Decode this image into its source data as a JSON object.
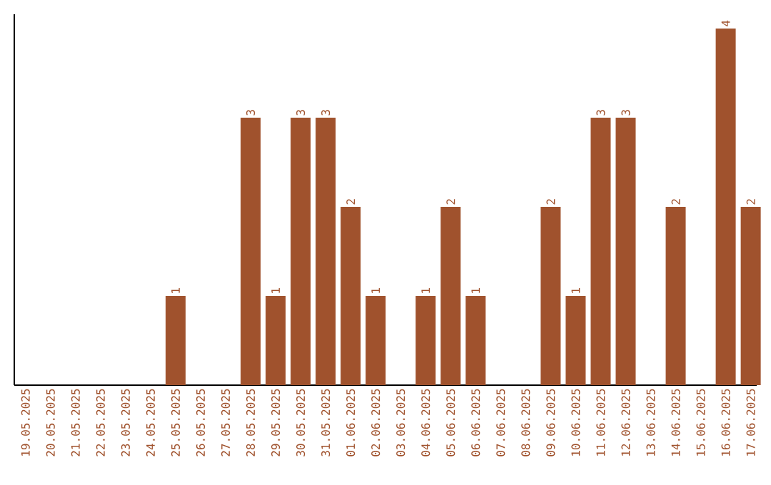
{
  "chart_data": {
    "type": "bar",
    "categories": [
      "19.05.2025",
      "20.05.2025",
      "21.05.2025",
      "22.05.2025",
      "23.05.2025",
      "24.05.2025",
      "25.05.2025",
      "26.05.2025",
      "27.05.2025",
      "28.05.2025",
      "29.05.2025",
      "30.05.2025",
      "31.05.2025",
      "01.06.2025",
      "02.06.2025",
      "03.06.2025",
      "04.06.2025",
      "05.06.2025",
      "06.06.2025",
      "07.06.2025",
      "08.06.2025",
      "09.06.2025",
      "10.06.2025",
      "11.06.2025",
      "12.06.2025",
      "13.06.2025",
      "14.06.2025",
      "15.06.2025",
      "16.06.2025",
      "17.06.2025"
    ],
    "values": [
      0,
      0,
      0,
      0,
      0,
      0,
      1,
      0,
      0,
      3,
      1,
      3,
      3,
      2,
      1,
      0,
      1,
      2,
      1,
      0,
      0,
      2,
      1,
      3,
      3,
      0,
      2,
      0,
      4,
      2
    ],
    "value_labels": [
      null,
      null,
      null,
      null,
      null,
      null,
      "1",
      null,
      null,
      "3",
      "1",
      "3",
      "3",
      "2",
      "1",
      null,
      "1",
      "2",
      "1",
      null,
      null,
      "2",
      "1",
      "3",
      "3",
      null,
      "2",
      null,
      "4",
      "2"
    ],
    "color": "#a0522d",
    "ylim": [
      0,
      4.16
    ],
    "tick_labels": "x"
  }
}
